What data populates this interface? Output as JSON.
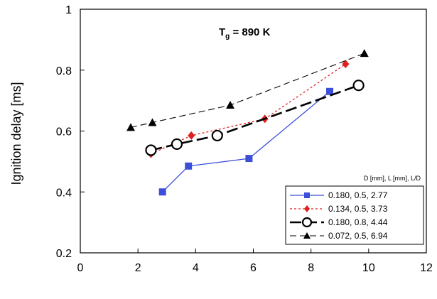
{
  "chart_data": {
    "type": "line",
    "ylabel": "Ignition delay [ms]",
    "annotation": {
      "main": "T",
      "subscript": "g",
      "rest": " = 890 K"
    },
    "xlim": [
      0,
      12
    ],
    "ylim": [
      0.2,
      1
    ],
    "x_ticks": [
      "0",
      "2",
      "4",
      "6",
      "8",
      "10",
      "12"
    ],
    "y_ticks": [
      "0.2",
      "0.4",
      "0.6",
      "0.8",
      "1"
    ],
    "legend_title": "D [mm], L [mm], L/D",
    "legend_position": "bottom-right",
    "series": [
      {
        "name": "0.180, 0.5, 2.77",
        "color": "#3b4fd8",
        "line_style": "solid",
        "marker": "square",
        "x": [
          2.85,
          3.75,
          5.85,
          8.65
        ],
        "y": [
          0.4,
          0.485,
          0.51,
          0.73
        ]
      },
      {
        "name": "0.134, 0.5, 3.73",
        "color": "#e02020",
        "line_style": "dotted",
        "marker": "diamond",
        "x": [
          2.45,
          3.85,
          6.4,
          9.2
        ],
        "y": [
          0.525,
          0.585,
          0.64,
          0.82
        ]
      },
      {
        "name": "0.180, 0.8, 4.44",
        "color": "#000000",
        "line_style": "longdash",
        "marker": "circle",
        "x": [
          2.45,
          3.35,
          4.75,
          9.65
        ],
        "y": [
          0.537,
          0.557,
          0.585,
          0.75
        ]
      },
      {
        "name": "0.072, 0.5, 6.94",
        "color": "#000000",
        "line_style": "dashed",
        "marker": "triangle",
        "x": [
          1.75,
          2.5,
          5.2,
          9.85
        ],
        "y": [
          0.612,
          0.628,
          0.685,
          0.855
        ]
      }
    ]
  }
}
